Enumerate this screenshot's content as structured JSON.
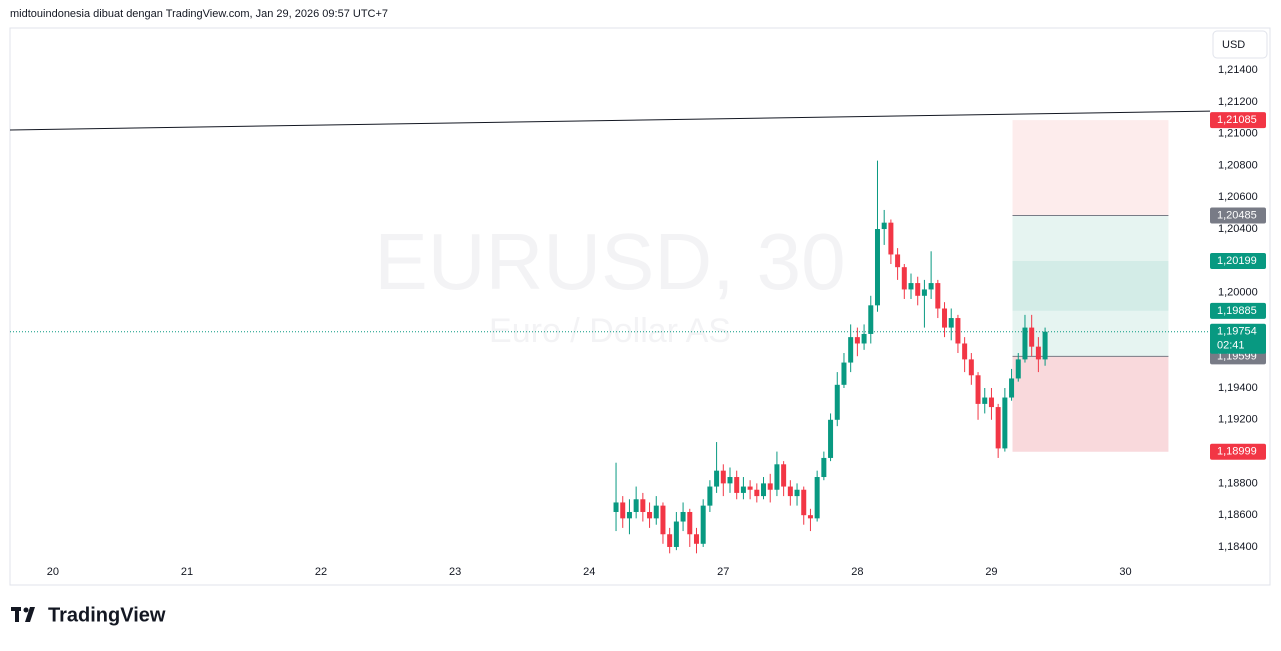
{
  "header": "midtouindonesia dibuat dengan TradingView.com, Jan 29, 2026 09:57 UTC+7",
  "brand": "TradingView",
  "chart_data": {
    "type": "candlestick",
    "title": "EURUSD, 30",
    "subtitle": "Euro / Dollar AS",
    "currency": "USD",
    "up_color": "#089981",
    "down_color": "#f23645",
    "xlim": [
      -0.32,
      8.63
    ],
    "ylim": [
      1.18318,
      1.21652
    ],
    "xticks": [
      {
        "value": 0,
        "label": "20"
      },
      {
        "value": 1,
        "label": "21"
      },
      {
        "value": 2,
        "label": "22"
      },
      {
        "value": 3,
        "label": "23"
      },
      {
        "value": 4,
        "label": "24"
      },
      {
        "value": 5,
        "label": "27"
      },
      {
        "value": 6,
        "label": "28"
      },
      {
        "value": 7,
        "label": "29"
      },
      {
        "value": 8,
        "label": "30"
      }
    ],
    "yticks": [
      {
        "value": 1.214,
        "label": "1,21400"
      },
      {
        "value": 1.212,
        "label": "1,21200"
      },
      {
        "value": 1.21,
        "label": "1,21000"
      },
      {
        "value": 1.208,
        "label": "1,20800"
      },
      {
        "value": 1.206,
        "label": "1,20600"
      },
      {
        "value": 1.204,
        "label": "1,20400"
      },
      {
        "value": 1.2,
        "label": "1,20000"
      },
      {
        "value": 1.194,
        "label": "1,19400"
      },
      {
        "value": 1.192,
        "label": "1,19200"
      },
      {
        "value": 1.188,
        "label": "1,18800"
      },
      {
        "value": 1.186,
        "label": "1,18600"
      },
      {
        "value": 1.184,
        "label": "1,18400"
      }
    ],
    "x": [
      4.2,
      4.25,
      4.3,
      4.35,
      4.4,
      4.45,
      4.5,
      4.55,
      4.6,
      4.65,
      4.7,
      4.75,
      4.8,
      4.85,
      4.9,
      4.95,
      5.0,
      5.05,
      5.1,
      5.15,
      5.2,
      5.25,
      5.3,
      5.35,
      5.4,
      5.45,
      5.5,
      5.55,
      5.6,
      5.65,
      5.7,
      5.75,
      5.8,
      5.85,
      5.9,
      5.95,
      6.0,
      6.05,
      6.1,
      6.15,
      6.2,
      6.25,
      6.3,
      6.35,
      6.4,
      6.45,
      6.5,
      6.55,
      6.6,
      6.65,
      6.7,
      6.75,
      6.8,
      6.85,
      6.9,
      6.95,
      7.0,
      7.05,
      7.1,
      7.15,
      7.2,
      7.25,
      7.3,
      7.35,
      7.4
    ],
    "open": [
      1.1862,
      1.1868,
      1.1858,
      1.1862,
      1.187,
      1.1862,
      1.1858,
      1.1866,
      1.1848,
      1.184,
      1.1856,
      1.1862,
      1.1848,
      1.1842,
      1.1866,
      1.1878,
      1.1888,
      1.188,
      1.1884,
      1.1874,
      1.1878,
      1.1876,
      1.1872,
      1.188,
      1.1876,
      1.1892,
      1.1878,
      1.1872,
      1.1876,
      1.186,
      1.1858,
      1.1884,
      1.1896,
      1.192,
      1.1942,
      1.1956,
      1.1972,
      1.1968,
      1.1974,
      1.1992,
      1.204,
      1.2044,
      1.2024,
      1.2016,
      1.2002,
      1.2006,
      1.1998,
      1.2002,
      1.2006,
      1.199,
      1.1978,
      1.1984,
      1.1968,
      1.1958,
      1.1948,
      1.193,
      1.1934,
      1.1928,
      1.1902,
      1.1934,
      1.1946,
      1.1958,
      1.1978,
      1.1966,
      1.1958
    ],
    "high": [
      1.1893,
      1.1872,
      1.187,
      1.1878,
      1.1874,
      1.1868,
      1.1872,
      1.1868,
      1.1852,
      1.1862,
      1.1868,
      1.1864,
      1.1852,
      1.187,
      1.1882,
      1.1906,
      1.1892,
      1.189,
      1.1888,
      1.1884,
      1.1882,
      1.188,
      1.1884,
      1.1886,
      1.19,
      1.1894,
      1.1882,
      1.188,
      1.1878,
      1.1864,
      1.1888,
      1.19,
      1.1924,
      1.195,
      1.1962,
      1.198,
      1.1978,
      1.198,
      1.1998,
      1.2083,
      1.2052,
      1.2046,
      1.2028,
      1.2018,
      1.2012,
      1.201,
      1.2008,
      1.2026,
      1.2008,
      1.1994,
      1.199,
      1.1986,
      1.1972,
      1.1962,
      1.195,
      1.194,
      1.194,
      1.193,
      1.194,
      1.1952,
      1.1962,
      1.1986,
      1.1986,
      1.1972,
      1.1978
    ],
    "low": [
      1.185,
      1.1852,
      1.1848,
      1.1858,
      1.1856,
      1.1852,
      1.1854,
      1.1842,
      1.1836,
      1.1838,
      1.185,
      1.184,
      1.1836,
      1.184,
      1.1862,
      1.1874,
      1.1872,
      1.1874,
      1.187,
      1.187,
      1.187,
      1.1868,
      1.187,
      1.1868,
      1.1872,
      1.1872,
      1.1866,
      1.1866,
      1.1854,
      1.185,
      1.1856,
      1.1882,
      1.1894,
      1.1916,
      1.194,
      1.195,
      1.196,
      1.1964,
      1.1968,
      1.1988,
      1.203,
      1.2018,
      1.2008,
      1.1996,
      1.1996,
      1.1992,
      1.1978,
      1.1996,
      1.1984,
      1.1972,
      1.197,
      1.1962,
      1.195,
      1.1942,
      1.192,
      1.1924,
      1.192,
      1.1896,
      1.19,
      1.1932,
      1.1944,
      1.1956,
      1.196,
      1.195,
      1.1954
    ],
    "close": [
      1.1868,
      1.1858,
      1.1862,
      1.187,
      1.1862,
      1.1858,
      1.1866,
      1.1848,
      1.184,
      1.1856,
      1.1862,
      1.1848,
      1.1842,
      1.1866,
      1.1878,
      1.1888,
      1.188,
      1.1884,
      1.1874,
      1.1878,
      1.1876,
      1.1872,
      1.188,
      1.1876,
      1.1892,
      1.1878,
      1.1872,
      1.1876,
      1.186,
      1.1858,
      1.1884,
      1.1896,
      1.192,
      1.1942,
      1.1956,
      1.1972,
      1.1968,
      1.1974,
      1.1992,
      1.204,
      1.2044,
      1.2024,
      1.2016,
      1.2002,
      1.2006,
      1.1998,
      1.2002,
      1.2006,
      1.199,
      1.1978,
      1.1984,
      1.1968,
      1.1958,
      1.1948,
      1.193,
      1.1934,
      1.1928,
      1.1902,
      1.1934,
      1.1946,
      1.1958,
      1.1978,
      1.1966,
      1.1958,
      1.19754
    ],
    "trendline": {
      "x": [
        -0.32,
        8.63
      ],
      "y": [
        1.21023,
        1.21142
      ],
      "color": "#131722"
    },
    "position_x": [
      7.157,
      8.32
    ],
    "levels": [
      {
        "value": 1.21085,
        "label": "1,21085",
        "color": "#f23645",
        "band": "#fdecec"
      },
      {
        "value": 1.20485,
        "label": "1,20485",
        "color": "#787b86",
        "band": "#e6f4f1"
      },
      {
        "value": 1.20199,
        "label": "1,20199",
        "color": "#089981",
        "band": "#d3ece7"
      },
      {
        "value": 1.19885,
        "label": "1,19885",
        "color": "#089981",
        "band": "#e6f4f1"
      },
      {
        "value": 1.19599,
        "label": "1,19599",
        "color": "#787b86",
        "band": "#f9d9dc"
      },
      {
        "value": 1.18999,
        "label": "1,18999",
        "color": "#f23645"
      }
    ],
    "last_price": {
      "value": 1.19754,
      "label": "1,19754",
      "countdown": "02:41",
      "color": "#089981"
    }
  }
}
